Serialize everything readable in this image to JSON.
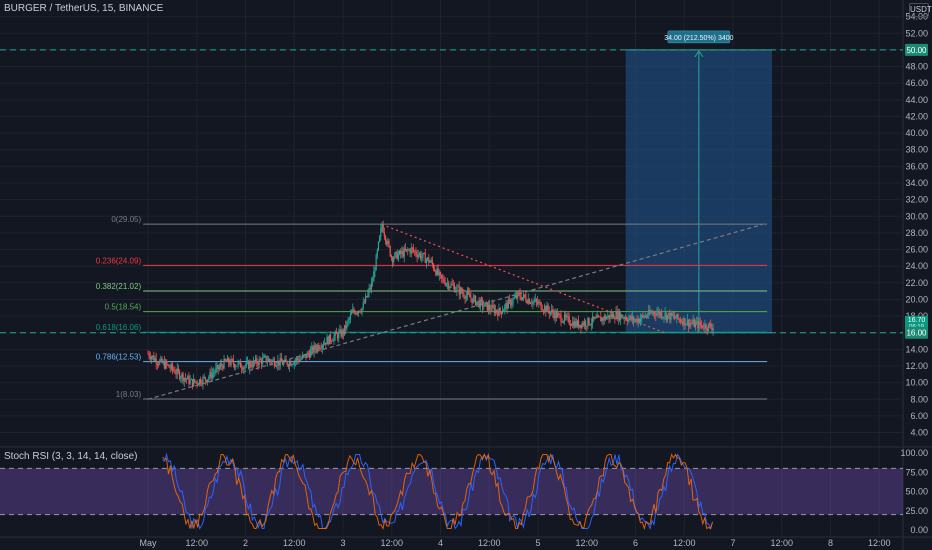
{
  "header": {
    "title": "BURGER / TetherUS, 15, BINANCE",
    "currency": "USDT"
  },
  "rsi_panel": {
    "title": "Stoch RSI (3, 3, 14, 14, close)",
    "levels": [
      100,
      80,
      20,
      0
    ],
    "tick_labels": [
      "100.00",
      "75.00",
      "50.00",
      "25.00",
      "0.00"
    ]
  },
  "colors": {
    "background": "#131722",
    "grid": "#1e222d",
    "up": "#26a69a",
    "down": "#ef5350",
    "long_zone": "#1f4a7a",
    "target_line": "#26a69a",
    "rsi_k": "#2962ff",
    "rsi_d": "#ff6d00",
    "rsi_band": "#7e57c2"
  },
  "position_tool": {
    "label": "34.00 (212.50%) 3400",
    "entry": 16.0,
    "target": 50.0,
    "entry_label": "16.00",
    "target_label": "50.00"
  },
  "price_tags": {
    "last": "16.70",
    "last_sub": "06:19"
  },
  "chart_data": {
    "type": "line",
    "title": "BURGER / TetherUS, 15, BINANCE",
    "x_ticks": [
      "May",
      "12:00",
      "2",
      "12:00",
      "3",
      "12:00",
      "4",
      "12:00",
      "5",
      "12:00",
      "6",
      "12:00",
      "7",
      "12:00",
      "8",
      "12:00"
    ],
    "y_ticks": [
      "54.00",
      "52.00",
      "50.00",
      "48.00",
      "46.00",
      "44.00",
      "42.00",
      "40.00",
      "38.00",
      "36.00",
      "34.00",
      "32.00",
      "30.00",
      "28.00",
      "26.00",
      "24.00",
      "22.00",
      "20.00",
      "18.00",
      "16.00",
      "14.00",
      "12.00",
      "10.00",
      "8.00",
      "6.00",
      "4.00"
    ],
    "ylim": [
      2.5,
      56
    ],
    "grid": true,
    "price_series": {
      "name": "",
      "t": [
        0,
        0.1,
        0.2,
        0.3,
        0.45,
        0.6,
        0.8,
        1.0,
        1.2,
        1.4,
        1.6,
        1.75,
        1.9,
        2.0,
        2.1,
        2.2,
        2.3,
        2.4,
        2.45,
        2.5,
        2.7,
        2.9,
        3.0,
        3.2,
        3.4,
        3.6,
        3.8,
        4.0,
        4.2,
        4.4,
        4.6,
        4.8,
        5.0,
        5.2,
        5.4,
        5.6,
        5.8
      ],
      "close": [
        13.5,
        12.6,
        12.0,
        11.2,
        10.0,
        10.5,
        12.5,
        12.0,
        12.8,
        12.3,
        13.0,
        14.5,
        15.5,
        16.0,
        18.5,
        19.0,
        22.0,
        29.0,
        27.0,
        25.0,
        26.0,
        24.5,
        22.5,
        21.0,
        19.5,
        18.5,
        20.5,
        19.5,
        18.0,
        17.0,
        17.5,
        18.2,
        17.5,
        18.5,
        17.8,
        17.0,
        16.7
      ]
    },
    "fibonacci": [
      {
        "level": "0",
        "price": 29.05,
        "label": "0(29.05)",
        "color": "#787b86"
      },
      {
        "level": "0.236",
        "price": 24.09,
        "label": "0.236(24.09)",
        "color": "#f23645"
      },
      {
        "level": "0.382",
        "price": 21.02,
        "label": "0.382(21.02)",
        "color": "#81c784"
      },
      {
        "level": "0.5",
        "price": 18.54,
        "label": "0.5(18.54)",
        "color": "#4caf50"
      },
      {
        "level": "0.618",
        "price": 16.06,
        "label": "0.618(16.06)",
        "color": "#089981"
      },
      {
        "level": "0.786",
        "price": 12.53,
        "label": "0.786(12.53)",
        "color": "#64b5f6"
      },
      {
        "level": "1",
        "price": 8.03,
        "label": "1(8.03)",
        "color": "#787b86"
      }
    ],
    "trendlines": [
      {
        "name": "",
        "style": "dotted",
        "color": "#ef5350",
        "from": {
          "t": 2.4,
          "price": 29.0
        },
        "to": {
          "t": 5.3,
          "price": 16.0
        }
      },
      {
        "name": "",
        "style": "dashed",
        "color": "#787b86",
        "from": {
          "t": 0.0,
          "price": 8.0
        },
        "to": {
          "t": 6.3,
          "price": 29.0
        }
      }
    ]
  }
}
